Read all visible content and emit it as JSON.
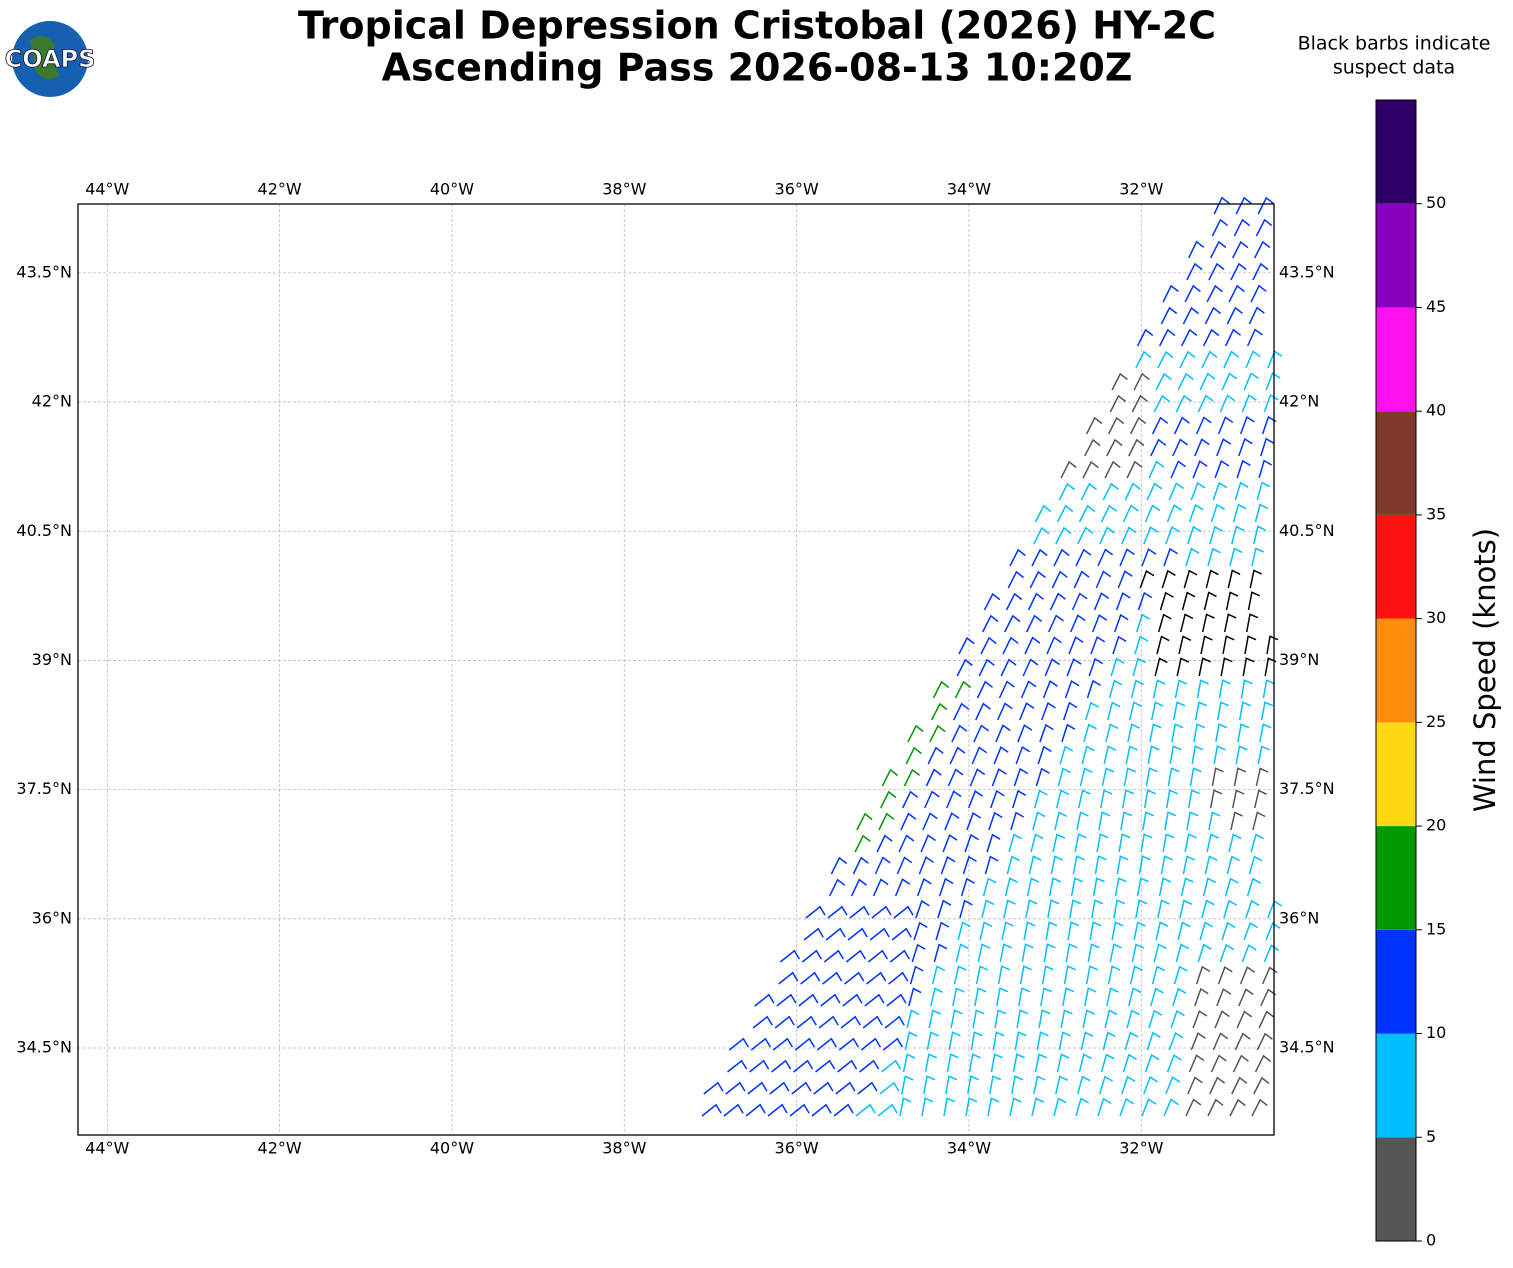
{
  "title": [
    "Tropical Depression Cristobal (2026) HY-2C",
    "Ascending Pass 2026-08-13 10:20Z"
  ],
  "logo": "COAPS",
  "note": [
    "Black barbs indicate",
    "suspect data"
  ],
  "map": {
    "xlim": [
      -44.34,
      -30.46
    ],
    "ylim": [
      33.49,
      44.3
    ],
    "xticks": [
      {
        "value": -44,
        "label": "44°W"
      },
      {
        "value": -42,
        "label": "42°W"
      },
      {
        "value": -40,
        "label": "40°W"
      },
      {
        "value": -38,
        "label": "38°W"
      },
      {
        "value": -36,
        "label": "36°W"
      },
      {
        "value": -34,
        "label": "34°W"
      },
      {
        "value": -32,
        "label": "32°W"
      }
    ],
    "yticks": [
      {
        "value": 34.5,
        "label": "34.5°N"
      },
      {
        "value": 36,
        "label": "36°N"
      },
      {
        "value": 37.5,
        "label": "37.5°N"
      },
      {
        "value": 39,
        "label": "39°N"
      },
      {
        "value": 40.5,
        "label": "40.5°N"
      },
      {
        "value": 42,
        "label": "42°N"
      },
      {
        "value": 43.5,
        "label": "43.5°N"
      }
    ]
  },
  "colorbar": {
    "label": "Wind Speed (knots)",
    "levels": [
      0,
      5,
      10,
      15,
      20,
      25,
      30,
      35,
      40,
      45,
      50,
      55
    ],
    "colors": [
      "#555555",
      "#00bfff",
      "#0033ff",
      "#009900",
      "#ffd813",
      "#ff8c0a",
      "#ff1010",
      "#803a2a",
      "#ff10ee",
      "#8800bb",
      "#2e0066"
    ],
    "ticks": [
      0,
      5,
      10,
      15,
      20,
      25,
      30,
      35,
      40,
      45,
      50
    ]
  }
}
